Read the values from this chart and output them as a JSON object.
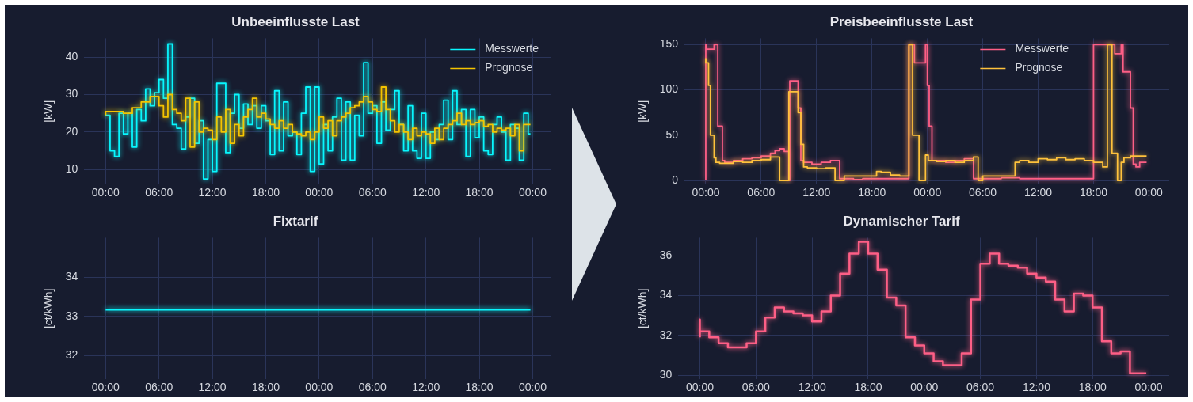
{
  "chart_data": [
    {
      "type": "step",
      "title": "Unbeeinflusste Last",
      "ylabel": "[kW]",
      "grid": true,
      "legend": "top right",
      "xlim": [
        "--05-31T21:36",
        "--06-03T02:06"
      ],
      "xticks": [
        {
          "value": "--06-01T00:00",
          "label": "00:00"
        },
        {
          "value": "--06-01T06:00",
          "label": "06:00"
        },
        {
          "value": "--06-01T12:00",
          "label": "12:00"
        },
        {
          "value": "--06-01T18:00",
          "label": "18:00"
        },
        {
          "value": "--06-02T00:00",
          "label": "00:00"
        },
        {
          "value": "--06-02T06:00",
          "label": "06:00"
        },
        {
          "value": "--06-02T12:00",
          "label": "12:00"
        },
        {
          "value": "--06-02T18:00",
          "label": "18:00"
        },
        {
          "value": "--06-03T00:00",
          "label": "00:00"
        }
      ],
      "ylim": [
        6,
        45
      ],
      "yticks": [
        10,
        20,
        30,
        40
      ],
      "series": [
        {
          "name": "Messwerte",
          "color": "#08f7fe",
          "x": [
            "--06-01T00:00",
            "--06-01T00:30",
            "--06-01T01:00",
            "--06-01T01:30",
            "--06-01T02:00",
            "--06-01T02:30",
            "--06-01T03:00",
            "--06-01T03:30",
            "--06-01T04:00",
            "--06-01T04:30",
            "--06-01T05:00",
            "--06-01T05:30",
            "--06-01T06:00",
            "--06-01T06:30",
            "--06-01T07:00",
            "--06-01T07:30",
            "--06-01T08:00",
            "--06-01T08:30",
            "--06-01T09:00",
            "--06-01T09:30",
            "--06-01T10:00",
            "--06-01T10:30",
            "--06-01T11:00",
            "--06-01T11:30",
            "--06-01T12:00",
            "--06-01T12:30",
            "--06-01T13:00",
            "--06-01T13:30",
            "--06-01T14:00",
            "--06-01T14:30",
            "--06-01T15:00",
            "--06-01T15:30",
            "--06-01T16:00",
            "--06-01T16:30",
            "--06-01T17:00",
            "--06-01T17:30",
            "--06-01T18:00",
            "--06-01T18:30",
            "--06-01T19:00",
            "--06-01T19:30",
            "--06-01T20:00",
            "--06-01T20:30",
            "--06-01T21:00",
            "--06-01T21:30",
            "--06-01T22:00",
            "--06-01T22:30",
            "--06-01T23:00",
            "--06-01T23:30",
            "--06-02T00:00",
            "--06-02T00:30",
            "--06-02T01:00",
            "--06-02T01:30",
            "--06-02T02:00",
            "--06-02T02:30",
            "--06-02T03:00",
            "--06-02T03:30",
            "--06-02T04:00",
            "--06-02T04:30",
            "--06-02T05:00",
            "--06-02T05:30",
            "--06-02T06:00",
            "--06-02T06:30",
            "--06-02T07:00",
            "--06-02T07:30",
            "--06-02T08:00",
            "--06-02T08:30",
            "--06-02T09:00",
            "--06-02T09:30",
            "--06-02T10:00",
            "--06-02T10:30",
            "--06-02T11:00",
            "--06-02T11:30",
            "--06-02T12:00",
            "--06-02T12:30",
            "--06-02T13:00",
            "--06-02T13:30",
            "--06-02T14:00",
            "--06-02T14:30",
            "--06-02T15:00",
            "--06-02T15:30",
            "--06-02T16:00",
            "--06-02T16:30",
            "--06-02T17:00",
            "--06-02T17:30",
            "--06-02T18:00",
            "--06-02T18:30",
            "--06-02T19:00",
            "--06-02T19:30",
            "--06-02T20:00",
            "--06-02T20:30",
            "--06-02T21:00",
            "--06-02T21:30",
            "--06-02T22:00",
            "--06-02T22:30",
            "--06-02T23:00",
            "--06-02T23:30",
            "--06-02T23:45"
          ],
          "values": [
            25,
            24.5,
            15,
            13.5,
            25,
            19.5,
            25,
            16,
            26,
            23,
            31.5,
            27,
            30.5,
            34,
            29,
            43.5,
            22,
            21,
            15.5,
            24,
            29,
            17,
            23,
            7.5,
            18,
            9.5,
            33,
            33,
            14.5,
            25,
            30,
            21,
            27.5,
            22,
            27,
            21,
            27,
            23,
            14,
            31,
            15,
            28,
            19,
            20,
            14,
            25,
            32,
            9.5,
            32,
            11.5,
            22,
            15,
            24,
            29,
            12.5,
            28,
            12.5,
            24.5,
            19,
            38.5,
            25,
            27,
            17,
            28,
            20.5,
            26,
            31,
            22,
            15,
            27,
            15,
            13,
            25,
            13,
            20,
            18,
            22,
            28.5,
            18,
            31,
            22,
            26,
            13.5,
            26,
            18.5,
            24,
            15,
            14,
            22,
            24,
            20,
            12.5,
            22,
            21,
            12.5,
            25,
            19.5
          ]
        },
        {
          "name": "Prognose",
          "color": "#f5c400",
          "x": [
            "--06-01T00:00",
            "--06-01T01:00",
            "--06-01T02:00",
            "--06-01T03:00",
            "--06-01T04:00",
            "--06-01T05:00",
            "--06-01T06:00",
            "--06-01T06:30",
            "--06-01T07:00",
            "--06-01T07:30",
            "--06-01T08:00",
            "--06-01T08:30",
            "--06-01T09:00",
            "--06-01T09:30",
            "--06-01T10:00",
            "--06-01T10:30",
            "--06-01T11:00",
            "--06-01T11:30",
            "--06-01T12:00",
            "--06-01T12:30",
            "--06-01T13:00",
            "--06-01T13:30",
            "--06-01T14:00",
            "--06-01T14:30",
            "--06-01T15:00",
            "--06-01T15:30",
            "--06-01T16:00",
            "--06-01T16:30",
            "--06-01T17:00",
            "--06-01T17:30",
            "--06-01T18:00",
            "--06-01T18:30",
            "--06-01T19:00",
            "--06-01T19:30",
            "--06-01T20:00",
            "--06-01T20:30",
            "--06-01T21:00",
            "--06-01T21:30",
            "--06-01T22:00",
            "--06-01T22:30",
            "--06-01T23:00",
            "--06-01T23:30",
            "--06-02T00:00",
            "--06-02T00:30",
            "--06-02T01:00",
            "--06-02T01:30",
            "--06-02T02:00",
            "--06-02T02:30",
            "--06-02T03:00",
            "--06-02T03:30",
            "--06-02T04:00",
            "--06-02T04:30",
            "--06-02T05:00",
            "--06-02T05:30",
            "--06-02T06:00",
            "--06-02T06:30",
            "--06-02T07:00",
            "--06-02T07:30",
            "--06-02T08:00",
            "--06-02T08:30",
            "--06-02T09:00",
            "--06-02T09:30",
            "--06-02T10:00",
            "--06-02T10:30",
            "--06-02T11:00",
            "--06-02T11:30",
            "--06-02T12:00",
            "--06-02T12:30",
            "--06-02T13:00",
            "--06-02T13:30",
            "--06-02T14:00",
            "--06-02T14:30",
            "--06-02T15:00",
            "--06-02T15:30",
            "--06-02T16:00",
            "--06-02T16:30",
            "--06-02T17:00",
            "--06-02T17:30",
            "--06-02T18:00",
            "--06-02T18:30",
            "--06-02T19:00",
            "--06-02T19:30",
            "--06-02T20:00",
            "--06-02T20:30",
            "--06-02T21:00",
            "--06-02T21:30",
            "--06-02T22:00",
            "--06-02T22:30",
            "--06-02T23:00",
            "--06-02T23:30",
            "--06-02T23:45"
          ],
          "values": [
            24.5,
            25.5,
            25.5,
            25,
            26.5,
            28,
            29.5,
            27,
            24,
            30,
            26,
            25,
            23,
            29,
            16,
            28,
            20,
            21,
            20.5,
            18,
            24,
            20,
            26,
            17,
            22,
            19,
            24,
            26,
            29,
            24,
            25,
            23.5,
            22,
            21,
            23,
            21,
            22,
            20,
            19.5,
            19,
            20,
            18,
            20,
            24,
            21,
            23,
            19,
            23,
            24,
            25,
            26.5,
            27,
            28,
            29.5,
            28,
            26,
            25.5,
            32,
            26,
            23,
            20,
            22,
            20,
            18,
            21,
            19,
            20,
            19.5,
            17,
            21,
            18,
            21,
            22,
            23,
            25,
            22,
            23,
            22,
            22.5,
            23,
            21.5,
            22,
            20,
            21,
            20.5,
            21,
            19,
            22,
            15,
            22,
            22
          ]
        }
      ]
    },
    {
      "type": "step",
      "title": "Preisbeeinflusste Last",
      "ylabel": "[kW]",
      "grid": true,
      "legend": "top",
      "xlim": [
        "--05-31T21:42",
        "--06-03T02:12"
      ],
      "xticks": [
        {
          "value": "--06-01T00:00",
          "label": "00:00"
        },
        {
          "value": "--06-01T06:00",
          "label": "06:00"
        },
        {
          "value": "--06-01T12:00",
          "label": "12:00"
        },
        {
          "value": "--06-01T18:00",
          "label": "18:00"
        },
        {
          "value": "--06-02T00:00",
          "label": "00:00"
        },
        {
          "value": "--06-02T06:00",
          "label": "06:00"
        },
        {
          "value": "--06-02T12:00",
          "label": "12:00"
        },
        {
          "value": "--06-02T18:00",
          "label": "18:00"
        },
        {
          "value": "--06-03T00:00",
          "label": "00:00"
        }
      ],
      "ylim": [
        -4.5,
        157
      ],
      "yticks": [
        0,
        50,
        100,
        150
      ],
      "series": [
        {
          "name": "Messwerte",
          "color": "#fe5f86",
          "x": [
            "--06-01T00:00",
            "--06-01T00:03",
            "--06-01T00:54",
            "--06-01T01:18",
            "--06-01T01:48",
            "--06-01T02:03",
            "--06-01T03:00",
            "--06-01T04:00",
            "--06-01T05:00",
            "--06-01T06:00",
            "--06-01T07:00",
            "--06-01T07:30",
            "--06-01T08:00",
            "--06-01T08:30",
            "--06-01T09:00",
            "--06-01T09:06",
            "--06-01T10:00",
            "--06-01T10:18",
            "--06-01T10:36",
            "--06-01T11:30",
            "--06-01T12:30",
            "--06-01T13:30",
            "--06-01T14:30",
            "--06-01T15:00",
            "--06-01T16:00",
            "--06-01T17:00",
            "--06-01T18:00",
            "--06-01T19:00",
            "--06-01T20:00",
            "--06-01T21:00",
            "--06-01T22:00",
            "--06-01T22:36",
            "--06-01T23:48",
            "--06-02T00:00",
            "--06-02T00:12",
            "--06-02T00:30",
            "--06-02T00:42",
            "--06-02T02:00",
            "--06-02T03:00",
            "--06-02T04:00",
            "--06-02T05:00",
            "--06-02T06:00",
            "--06-02T08:00",
            "--06-02T10:00",
            "--06-02T12:00",
            "--06-02T14:00",
            "--06-02T16:00",
            "--06-02T18:00",
            "--06-02T20:18",
            "--06-02T21:00",
            "--06-02T21:12",
            "--06-02T22:00",
            "--06-02T22:18",
            "--06-02T22:36",
            "--06-02T23:00",
            "--06-02T23:30",
            "--06-02T23:45"
          ],
          "values": [
            0,
            150,
            145,
            150,
            60,
            22,
            20,
            22,
            24,
            25,
            27,
            30,
            33,
            35,
            32,
            0,
            110,
            80,
            22,
            20,
            18,
            20,
            22,
            2,
            2,
            1,
            2,
            2,
            2,
            2,
            2,
            150,
            130,
            150,
            105,
            60,
            22,
            22,
            20,
            22,
            24,
            2,
            2,
            3,
            2,
            2,
            2,
            2,
            150,
            140,
            150,
            120,
            80,
            18,
            15,
            20,
            20
          ]
        },
        {
          "name": "Prognose",
          "color": "#ffc23c",
          "x": [
            "--06-01T00:00",
            "--06-01T00:18",
            "--06-01T00:30",
            "--06-01T00:54",
            "--06-01T01:06",
            "--06-01T01:30",
            "--06-01T03:00",
            "--06-01T04:00",
            "--06-01T05:00",
            "--06-01T06:00",
            "--06-01T07:00",
            "--06-01T08:00",
            "--06-01T09:00",
            "--06-01T10:00",
            "--06-01T10:18",
            "--06-01T10:36",
            "--06-01T11:00",
            "--06-01T12:00",
            "--06-01T13:00",
            "--06-01T14:00",
            "--06-01T15:00",
            "--06-01T18:30",
            "--06-01T19:00",
            "--06-01T20:00",
            "--06-01T21:00",
            "--06-01T22:00",
            "--06-01T22:24",
            "--06-01T23:06",
            "--06-01T23:48",
            "--06-02T00:06",
            "--06-02T01:00",
            "--06-02T02:00",
            "--06-02T03:00",
            "--06-02T04:00",
            "--06-02T05:00",
            "--06-02T05:30",
            "--06-02T06:00",
            "--06-02T09:30",
            "--06-02T10:00",
            "--06-02T11:00",
            "--06-02T12:00",
            "--06-02T13:00",
            "--06-02T14:00",
            "--06-02T15:00",
            "--06-02T16:00",
            "--06-02T17:00",
            "--06-02T18:00",
            "--06-02T19:00",
            "--06-02T19:30",
            "--06-02T20:00",
            "--06-02T20:36",
            "--06-02T21:00",
            "--06-02T21:18",
            "--06-02T22:00",
            "--06-02T23:00",
            "--06-02T23:45"
          ],
          "values": [
            135,
            130,
            105,
            50,
            25,
            20,
            19,
            21,
            20,
            22,
            23,
            26,
            0,
            98,
            75,
            40,
            15,
            14,
            13,
            14,
            0,
            5,
            10,
            9,
            6,
            5,
            150,
            50,
            0,
            28,
            22,
            21,
            22,
            20,
            22,
            26,
            0,
            5,
            20,
            22,
            20,
            24,
            23,
            25,
            23,
            24,
            22,
            20,
            15,
            150,
            30,
            0,
            20,
            25,
            27,
            27
          ]
        }
      ]
    },
    {
      "type": "line",
      "title": "Fixtarif",
      "ylabel": "[ct/kWh]",
      "grid": true,
      "xlim": [
        "--05-31T21:36",
        "--06-03T02:06"
      ],
      "xticks": [
        {
          "value": "--06-01T00:00",
          "label": "00:00"
        },
        {
          "value": "--06-01T06:00",
          "label": "06:00"
        },
        {
          "value": "--06-01T12:00",
          "label": "12:00"
        },
        {
          "value": "--06-01T18:00",
          "label": "18:00"
        },
        {
          "value": "--06-02T00:00",
          "label": "00:00"
        },
        {
          "value": "--06-02T06:00",
          "label": "06:00"
        },
        {
          "value": "--06-02T12:00",
          "label": "12:00"
        },
        {
          "value": "--06-02T18:00",
          "label": "18:00"
        },
        {
          "value": "--06-03T00:00",
          "label": "00:00"
        }
      ],
      "ylim": [
        31.4,
        35
      ],
      "yticks": [
        32,
        33,
        34
      ],
      "series": [
        {
          "color": "#08f7fe",
          "x": [
            "--06-01T00:00",
            "--06-02T23:45"
          ],
          "values": [
            33.17,
            33.17
          ]
        }
      ]
    },
    {
      "type": "step",
      "title": "Dynamischer Tarif",
      "ylabel": "[ct/kWh]",
      "grid": true,
      "xlim": [
        "--05-31T21:42",
        "--06-03T02:12"
      ],
      "xticks": [
        {
          "value": "--06-01T00:00",
          "label": "00:00"
        },
        {
          "value": "--06-01T06:00",
          "label": "06:00"
        },
        {
          "value": "--06-01T12:00",
          "label": "12:00"
        },
        {
          "value": "--06-01T18:00",
          "label": "18:00"
        },
        {
          "value": "--06-02T00:00",
          "label": "00:00"
        },
        {
          "value": "--06-02T06:00",
          "label": "06:00"
        },
        {
          "value": "--06-02T12:00",
          "label": "12:00"
        },
        {
          "value": "--06-02T18:00",
          "label": "18:00"
        },
        {
          "value": "--06-03T00:00",
          "label": "00:00"
        }
      ],
      "ylim": [
        29.8,
        36.9
      ],
      "yticks": [
        30,
        32,
        34,
        36
      ],
      "series": [
        {
          "color": "#fe5f86",
          "x": [
            "--06-01T00:00",
            "--06-01T00:00",
            "--06-01T01:00",
            "--06-01T02:00",
            "--06-01T03:00",
            "--06-01T04:00",
            "--06-01T05:00",
            "--06-01T06:00",
            "--06-01T07:00",
            "--06-01T08:00",
            "--06-01T09:00",
            "--06-01T10:00",
            "--06-01T11:00",
            "--06-01T12:00",
            "--06-01T13:00",
            "--06-01T14:00",
            "--06-01T15:00",
            "--06-01T16:00",
            "--06-01T17:00",
            "--06-01T18:00",
            "--06-01T19:00",
            "--06-01T20:00",
            "--06-01T21:00",
            "--06-01T22:00",
            "--06-01T23:00",
            "--06-02T00:00",
            "--06-02T01:00",
            "--06-02T02:00",
            "--06-02T03:00",
            "--06-02T04:00",
            "--06-02T05:00",
            "--06-02T06:00",
            "--06-02T07:00",
            "--06-02T08:00",
            "--06-02T09:00",
            "--06-02T10:00",
            "--06-02T11:00",
            "--06-02T12:00",
            "--06-02T13:00",
            "--06-02T14:00",
            "--06-02T15:00",
            "--06-02T16:00",
            "--06-02T17:00",
            "--06-02T18:00",
            "--06-02T19:00",
            "--06-02T20:00",
            "--06-02T21:00",
            "--06-02T22:00",
            "--06-02T23:00",
            "--06-02T23:45"
          ],
          "values": [
            31.9,
            32.8,
            32.2,
            31.9,
            31.6,
            31.4,
            31.4,
            31.6,
            32.2,
            32.9,
            33.4,
            33.2,
            33.1,
            33,
            32.7,
            33.2,
            34,
            35.1,
            36.1,
            36.7,
            36.1,
            35.3,
            33.9,
            33.5,
            31.9,
            31.5,
            31.1,
            30.7,
            30.5,
            30.5,
            31.1,
            33.8,
            35.6,
            36.1,
            35.6,
            35.5,
            35.4,
            35.1,
            34.9,
            34.7,
            33.8,
            33.2,
            34.1,
            34,
            33.4,
            31.7,
            31.1,
            31.2,
            30.1,
            30.1
          ]
        }
      ]
    }
  ]
}
